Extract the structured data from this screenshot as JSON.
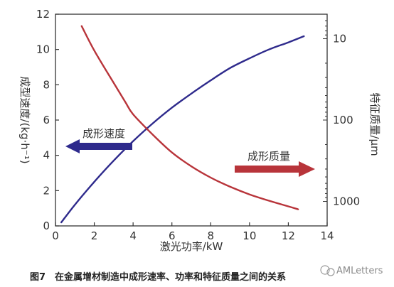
{
  "chart_data": {
    "type": "line",
    "xlabel": "激光功率/kW",
    "ylabel": "成型速度/(kg·h⁻¹)",
    "y2label": "特征质量/μm",
    "xlim": [
      0,
      14
    ],
    "ylim": [
      0,
      12
    ],
    "y2lim": [
      5,
      2000
    ],
    "y2scale": "log",
    "y2_inverted": true,
    "xticks": [
      0,
      2,
      4,
      6,
      8,
      10,
      12,
      14
    ],
    "yticks": [
      0,
      2,
      4,
      6,
      8,
      10,
      12
    ],
    "y2ticks": [
      10,
      100,
      1000
    ],
    "grid": false,
    "series": [
      {
        "name": "成形速度",
        "axis": "left",
        "color": "#2e2a8c",
        "x": [
          0.3,
          1,
          2,
          3,
          4,
          5,
          6,
          7,
          8,
          9,
          10,
          11,
          12,
          12.8
        ],
        "y": [
          0.2,
          1.2,
          2.5,
          3.7,
          4.8,
          5.8,
          6.7,
          7.5,
          8.25,
          8.95,
          9.5,
          10.0,
          10.4,
          10.75
        ]
      },
      {
        "name": "成形质量",
        "axis": "right",
        "color": "#b8343a",
        "x": [
          1.35,
          2,
          3,
          3.6,
          4,
          5,
          6,
          7,
          8,
          9,
          10,
          11,
          12,
          12.5
        ],
        "y": [
          7,
          14,
          35,
          60,
          85,
          150,
          250,
          370,
          510,
          660,
          820,
          980,
          1150,
          1250
        ]
      }
    ],
    "annotations": [
      {
        "text": "成形速度",
        "arrow": "left",
        "color": "#2e2a8c"
      },
      {
        "text": "成形质量",
        "arrow": "right",
        "color": "#b8343a"
      }
    ]
  },
  "caption": "图7　在金属增材制造中成形速率、功率和特征质量之间的关系",
  "watermark": "AMLetters",
  "colors": {
    "axis": "#333333",
    "speed": "#2e2a8c",
    "quality": "#b8343a"
  }
}
